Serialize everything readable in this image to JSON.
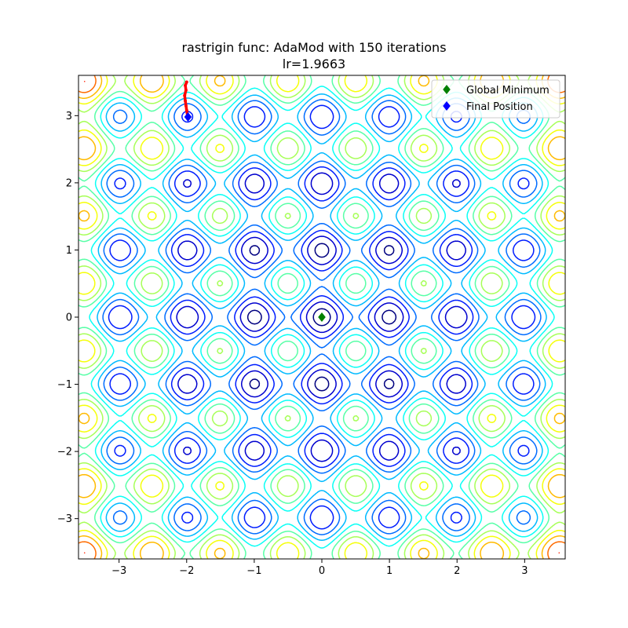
{
  "chart_data": {
    "type": "contour",
    "title": "rastrigin func: AdaMod with 150 iterations",
    "subtitle": "lr=1.9663",
    "xlabel": "",
    "ylabel": "",
    "xlim": [
      -3.6,
      3.6
    ],
    "ylim": [
      -3.6,
      3.6
    ],
    "xticks": [
      -3,
      -2,
      -1,
      0,
      1,
      2,
      3
    ],
    "yticks": [
      -3,
      -2,
      -1,
      0,
      1,
      2,
      3
    ],
    "xtick_labels": [
      "−3",
      "−2",
      "−1",
      "0",
      "1",
      "2",
      "3"
    ],
    "ytick_labels": [
      "−3",
      "−2",
      "−1",
      "0",
      "1",
      "2",
      "3"
    ],
    "function": "rastrigin",
    "contour_colormap": "jet",
    "grid": false,
    "legend_position": "top-right",
    "series": [
      {
        "name": "Global Minimum",
        "marker": "diamond",
        "color": "#008000",
        "x": [
          0
        ],
        "y": [
          0
        ]
      },
      {
        "name": "Final Position",
        "marker": "diamond",
        "color": "#0000ff",
        "x": [
          -1.98
        ],
        "y": [
          2.98
        ]
      }
    ],
    "trajectory": {
      "color": "#ff0000",
      "points": [
        [
          -2.0,
          3.5
        ],
        [
          -2.02,
          3.45
        ],
        [
          -2.01,
          3.38
        ],
        [
          -2.03,
          3.3
        ],
        [
          -2.02,
          3.22
        ],
        [
          -2.01,
          3.15
        ],
        [
          -2.0,
          3.08
        ],
        [
          -1.99,
          3.03
        ],
        [
          -1.98,
          2.98
        ]
      ]
    }
  }
}
